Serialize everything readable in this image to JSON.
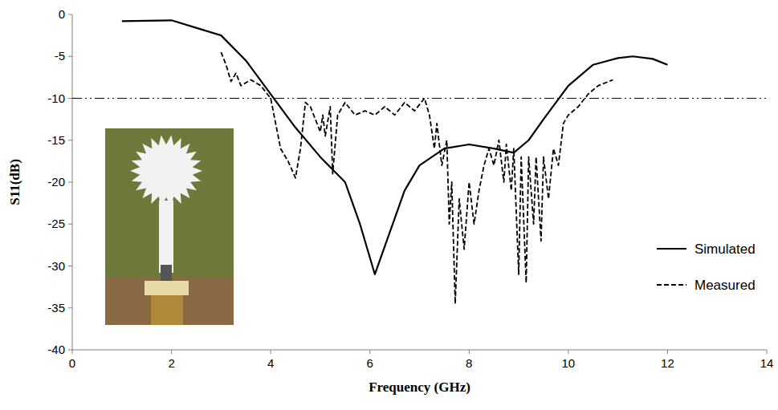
{
  "chart_data": {
    "type": "line",
    "x_label": "Frequency (GHz)",
    "y_label": "S11(dB)",
    "xlim": [
      0,
      14
    ],
    "xticks": [
      0,
      2,
      4,
      6,
      8,
      10,
      12,
      14
    ],
    "ylim": [
      -40,
      0
    ],
    "yticks": [
      -40,
      -35,
      -30,
      -25,
      -20,
      -15,
      -10,
      -5,
      0
    ],
    "grid": false,
    "legend": "right",
    "threshold": -10,
    "series": [
      {
        "name": "Simulated",
        "color": "#000000",
        "line_style": "solid",
        "x": [
          1,
          2,
          3,
          3.5,
          4,
          4.5,
          5,
          5.5,
          5.8,
          6.1,
          6.4,
          6.7,
          7,
          7.5,
          8,
          8.5,
          8.9,
          9.2,
          9.5,
          10,
          10.5,
          11,
          11.3,
          11.7,
          12
        ],
        "values": [
          -0.8,
          -0.7,
          -2.5,
          -5.5,
          -9.5,
          -13.5,
          -17,
          -20,
          -25,
          -31,
          -26,
          -21,
          -18,
          -16,
          -15.5,
          -16,
          -16.5,
          -15,
          -12.5,
          -8.5,
          -6,
          -5.2,
          -5,
          -5.3,
          -6
        ]
      },
      {
        "name": "Measured",
        "color": "#000000",
        "line_style": "dashed",
        "x": [
          3.0,
          3.1,
          3.2,
          3.3,
          3.4,
          3.6,
          3.8,
          4.0,
          4.1,
          4.2,
          4.35,
          4.5,
          4.6,
          4.7,
          4.8,
          4.9,
          5.0,
          5.05,
          5.1,
          5.2,
          5.25,
          5.35,
          5.5,
          5.7,
          5.9,
          6.1,
          6.3,
          6.5,
          6.7,
          6.9,
          7.1,
          7.2,
          7.3,
          7.35,
          7.45,
          7.55,
          7.6,
          7.65,
          7.72,
          7.8,
          7.9,
          8.0,
          8.1,
          8.2,
          8.3,
          8.4,
          8.5,
          8.6,
          8.7,
          8.75,
          8.85,
          8.9,
          9.0,
          9.05,
          9.15,
          9.2,
          9.3,
          9.35,
          9.45,
          9.5,
          9.6,
          9.7,
          9.8,
          9.9,
          10.0,
          10.2,
          10.4,
          10.6,
          10.9
        ],
        "values": [
          -4.5,
          -6,
          -8,
          -7,
          -8.5,
          -7.8,
          -8.5,
          -10,
          -13,
          -16,
          -17.5,
          -19.5,
          -16,
          -10.5,
          -11,
          -12.5,
          -14,
          -12,
          -14.5,
          -11,
          -19,
          -12,
          -10.5,
          -12,
          -11.5,
          -12,
          -11,
          -12,
          -10.5,
          -11.5,
          -10,
          -12,
          -16,
          -13,
          -18,
          -15,
          -25,
          -20,
          -34.5,
          -22,
          -28,
          -20,
          -25,
          -21,
          -18,
          -16,
          -18,
          -15,
          -20,
          -15.5,
          -21,
          -16,
          -31,
          -17,
          -32,
          -17,
          -25,
          -17,
          -27,
          -17,
          -22,
          -16,
          -18,
          -13,
          -12,
          -11,
          -9.5,
          -8.5,
          -7.8
        ]
      }
    ]
  }
}
